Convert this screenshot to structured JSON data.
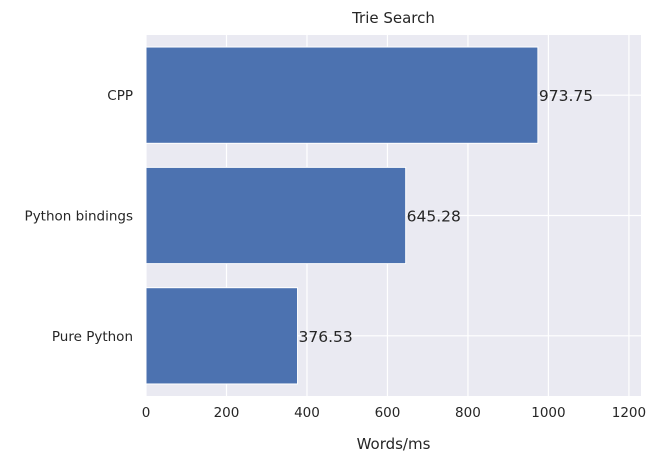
{
  "chart_data": {
    "type": "bar",
    "orientation": "horizontal",
    "title": "Trie Search",
    "xlabel": "Words/ms",
    "ylabel": "",
    "categories": [
      "CPP",
      "Python bindings",
      "Pure Python"
    ],
    "values": [
      973.75,
      645.28,
      376.53
    ],
    "value_labels": [
      "973.75",
      "645.28",
      "376.53"
    ],
    "xlim": [
      0,
      1230
    ],
    "xticks": [
      0,
      200,
      400,
      600,
      800,
      1000,
      1200
    ],
    "xtick_labels": [
      "0",
      "200",
      "400",
      "600",
      "800",
      "1000",
      "1200"
    ],
    "grid": true,
    "legend": "none",
    "colors": {
      "bar": "#4c72b0",
      "background": "#eaeaf2",
      "grid": "#ffffff",
      "text": "#262626"
    }
  }
}
